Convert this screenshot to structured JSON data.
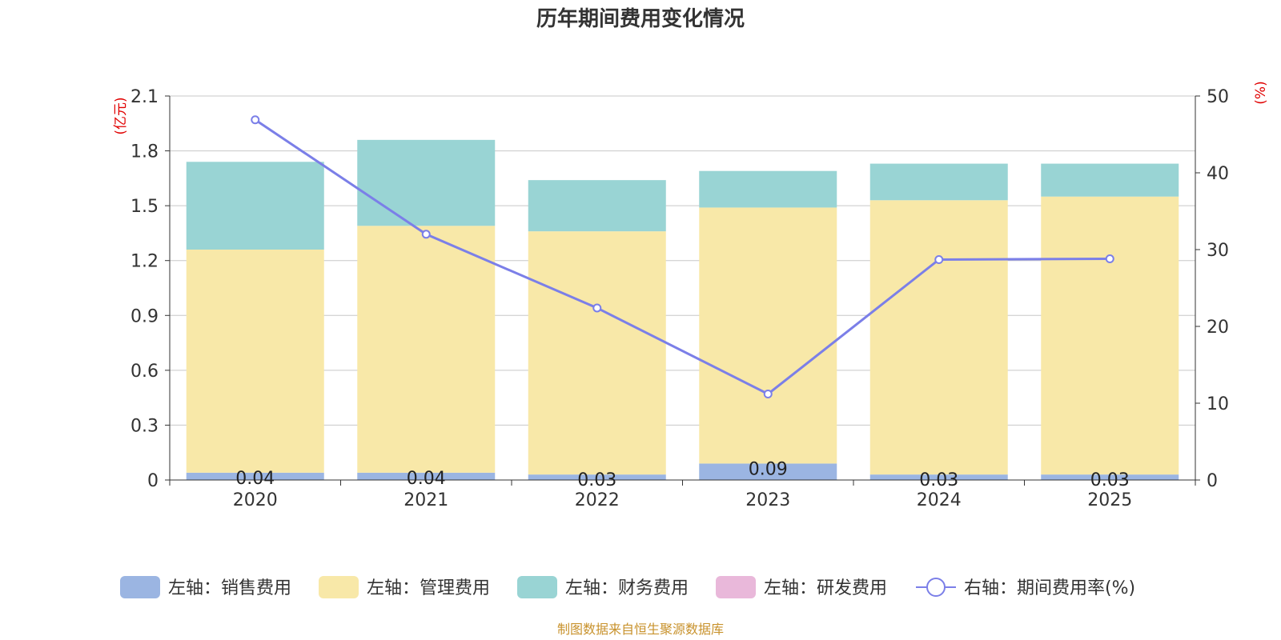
{
  "chart_data": {
    "type": "bar",
    "title": "历年期间费用变化情况",
    "categories": [
      "2020",
      "2021",
      "2022",
      "2023",
      "2024",
      "2025"
    ],
    "y_left": {
      "unit": "(亿元)",
      "ylim": [
        0,
        2.1
      ],
      "ticks": [
        "0",
        "0.3",
        "0.6",
        "0.9",
        "1.2",
        "1.5",
        "1.8",
        "2.1"
      ]
    },
    "y_right": {
      "unit": "(%)",
      "ylim": [
        0,
        50
      ],
      "ticks": [
        "0",
        "10",
        "20",
        "30",
        "40",
        "50"
      ]
    },
    "series": [
      {
        "name": "左轴：销售费用",
        "axis": "left",
        "kind": "bar",
        "color": "#9bb5e2",
        "values": [
          0.04,
          0.04,
          0.03,
          0.09,
          0.03,
          0.03
        ],
        "labels": [
          "0.04",
          "0.04",
          "0.03",
          "0.09",
          "0.03",
          "0.03"
        ]
      },
      {
        "name": "左轴：管理费用",
        "axis": "left",
        "kind": "bar",
        "color": "#f8e8a8",
        "values": [
          1.22,
          1.35,
          1.33,
          1.4,
          1.5,
          1.52
        ]
      },
      {
        "name": "左轴：财务费用",
        "axis": "left",
        "kind": "bar",
        "color": "#99d4d4",
        "values": [
          0.48,
          0.47,
          0.28,
          0.2,
          0.2,
          0.18
        ]
      },
      {
        "name": "左轴：研发费用",
        "axis": "left",
        "kind": "bar",
        "color": "#e9b8da",
        "values": [
          0,
          0,
          0,
          0,
          0,
          0
        ]
      },
      {
        "name": "右轴：期间费用率(%)",
        "axis": "right",
        "kind": "line",
        "color": "#7b7fe8",
        "values": [
          46.9,
          32.0,
          22.4,
          11.2,
          28.7,
          28.8
        ]
      }
    ],
    "legend_position": "bottom",
    "grid": true
  },
  "footer": {
    "source": "制图数据来自恒生聚源数据库"
  }
}
